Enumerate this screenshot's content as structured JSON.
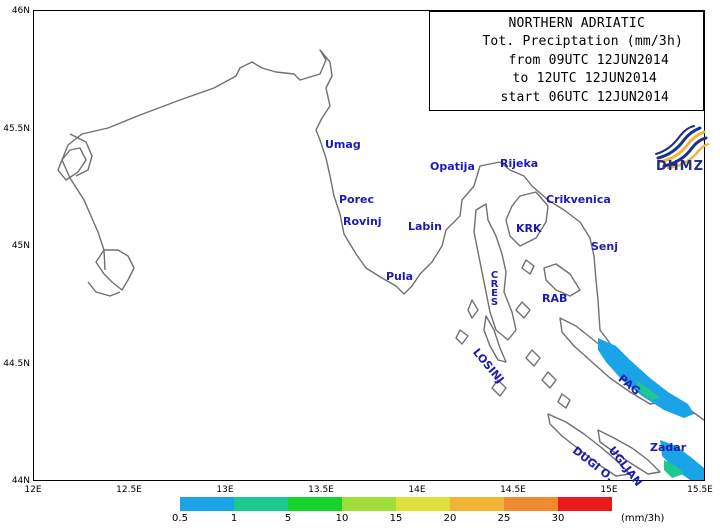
{
  "title": {
    "lines": [
      "NORTHERN ADRIATIC",
      "Tot. Preciptation (mm/3h)",
      "from 09UTC 12JUN2014",
      "to 12UTC 12JUN2014",
      "start 06UTC 12JUN2014"
    ]
  },
  "axes": {
    "lat_ticks": [
      "46N",
      "45.5N",
      "45N",
      "44.5N",
      "44N"
    ],
    "lon_ticks": [
      "12E",
      "12.5E",
      "13E",
      "13.5E",
      "14E",
      "14.5E",
      "15E",
      "15.5E"
    ]
  },
  "places": [
    "Umag",
    "Porec",
    "Rovinj",
    "Labin",
    "Pula",
    "Opatija",
    "Rijeka",
    "Crikvenica",
    "KRK",
    "Senj",
    "CRES",
    "RAB",
    "LOSINJ",
    "PAG",
    "Zadar",
    "UGLJAN",
    "DUGI O."
  ],
  "legend": {
    "ticks": [
      "0.5",
      "1",
      "5",
      "10",
      "15",
      "20",
      "25",
      "30"
    ],
    "unit": "(mm/3h)",
    "colors": [
      "#1aa3e6",
      "#1dc98f",
      "#16d42c",
      "#9edd3a",
      "#e1e03a",
      "#f2b336",
      "#ef8a31",
      "#ea1a1a"
    ]
  },
  "logo": {
    "text": "DHMZ",
    "icon": "dhmz-logo-icon"
  }
}
